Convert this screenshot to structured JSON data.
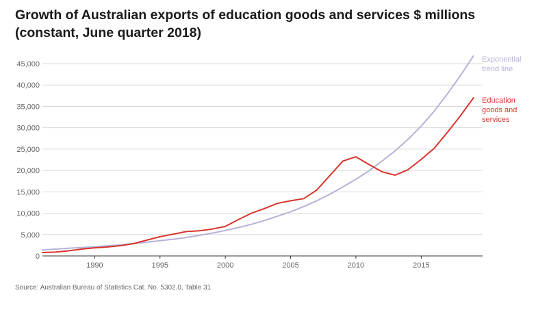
{
  "title_line1": "Growth of Australian exports of education goods and services $ millions",
  "title_line2": "(constant, June quarter 2018)",
  "source": "Source: Australian Bureau of Statistics Cat. No. 5302.0, Table 31",
  "colors": {
    "trend": "#b3b3d9",
    "education": "#d9342b",
    "grid": "#d9d9d9",
    "axis": "#333333"
  },
  "chart_data": {
    "type": "line",
    "title": "Growth of Australian exports of education goods and services $ millions (constant, June quarter 2018)",
    "xlabel": "",
    "ylabel": "",
    "xlim": [
      1986,
      2019.7
    ],
    "ylim": [
      0,
      47500
    ],
    "x_ticks": [
      1990,
      1995,
      2000,
      2005,
      2010,
      2015
    ],
    "y_ticks": [
      0,
      5000,
      10000,
      15000,
      20000,
      25000,
      30000,
      35000,
      40000,
      45000
    ],
    "y_tick_labels": [
      "0",
      "5,000",
      "10,000",
      "15,000",
      "20,000",
      "25,000",
      "30,000",
      "35,000",
      "40,000",
      "45,000"
    ],
    "series": [
      {
        "name": "Exponential trend line",
        "label_lines": [
          "Exponential",
          "trend line"
        ],
        "color": "#b3b3d9",
        "x": [
          1986,
          1987,
          1988,
          1989,
          1990,
          1991,
          1992,
          1993,
          1994,
          1995,
          1996,
          1997,
          1998,
          1999,
          2000,
          2001,
          2002,
          2003,
          2004,
          2005,
          2006,
          2007,
          2008,
          2009,
          2010,
          2011,
          2012,
          2013,
          2014,
          2015,
          2016,
          2017,
          2018,
          2019
        ],
        "values": [
          1400,
          1600,
          1800,
          1950,
          2150,
          2350,
          2600,
          2900,
          3200,
          3550,
          3900,
          4300,
          4800,
          5350,
          5950,
          6650,
          7400,
          8300,
          9300,
          10350,
          11550,
          12900,
          14450,
          16150,
          17950,
          19900,
          22200,
          24600,
          27300,
          30400,
          33900,
          37900,
          42200,
          46800
        ]
      },
      {
        "name": "Education goods and services",
        "label_lines": [
          "Education",
          "goods and",
          "services"
        ],
        "color": "#d9342b",
        "x": [
          1986,
          1987,
          1988,
          1989,
          1990,
          1991,
          1992,
          1993,
          1994,
          1995,
          1996,
          1997,
          1998,
          1999,
          2000,
          2001,
          2002,
          2003,
          2004,
          2005,
          2006,
          2007,
          2008,
          2009,
          2010,
          2011,
          2012,
          2013,
          2014,
          2015,
          2016,
          2017,
          2018,
          2019
        ],
        "values": [
          800,
          900,
          1200,
          1600,
          1900,
          2100,
          2400,
          2900,
          3700,
          4500,
          5100,
          5700,
          5900,
          6300,
          6900,
          8500,
          10000,
          11100,
          12300,
          12900,
          13400,
          15400,
          18800,
          22200,
          23200,
          21400,
          19700,
          18900,
          20200,
          22600,
          25200,
          28900,
          32800,
          37000
        ]
      }
    ]
  }
}
